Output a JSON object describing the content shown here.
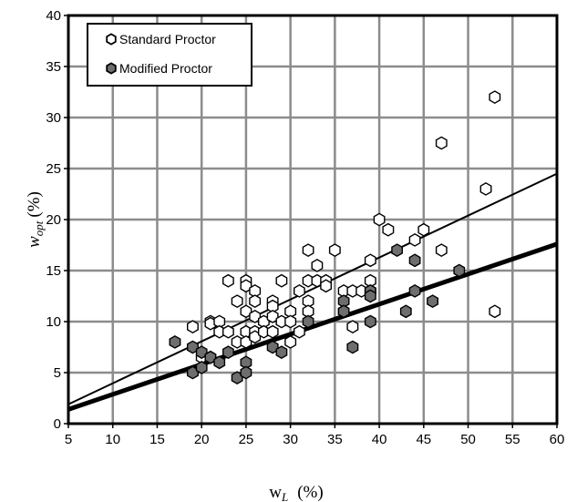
{
  "chart_data": {
    "type": "scatter",
    "xlabel": {
      "main": "w",
      "sub": "L",
      "units": "(%)"
    },
    "ylabel": {
      "main": "w",
      "sub": "opt",
      "units": "(%)"
    },
    "xlim": [
      5,
      60
    ],
    "ylim": [
      0,
      40
    ],
    "x_ticks": [
      "5",
      "10",
      "15",
      "20",
      "25",
      "30",
      "35",
      "40",
      "45",
      "50",
      "55",
      "60"
    ],
    "y_ticks": [
      "0",
      "5",
      "10",
      "15",
      "20",
      "25",
      "30",
      "35",
      "40"
    ],
    "grid": true,
    "legend_placement": "top-left",
    "series": [
      {
        "name": "Standard Proctor",
        "marker_fill": "#ffffff",
        "marker_stroke": "#000000",
        "points": [
          [
            19,
            9.5
          ],
          [
            20,
            6.5
          ],
          [
            21,
            10
          ],
          [
            21,
            9.8
          ],
          [
            21,
            6.5
          ],
          [
            22,
            10
          ],
          [
            22,
            9
          ],
          [
            23,
            14
          ],
          [
            23,
            9
          ],
          [
            24,
            12
          ],
          [
            24,
            8
          ],
          [
            25,
            14
          ],
          [
            25,
            13.5
          ],
          [
            25,
            11
          ],
          [
            25,
            9
          ],
          [
            25,
            8
          ],
          [
            26,
            13
          ],
          [
            26,
            12
          ],
          [
            26,
            10.5
          ],
          [
            26,
            9
          ],
          [
            26,
            8.5
          ],
          [
            27,
            10
          ],
          [
            27,
            9
          ],
          [
            28,
            12
          ],
          [
            28,
            11.5
          ],
          [
            28,
            10.5
          ],
          [
            28,
            9
          ],
          [
            29,
            14
          ],
          [
            29,
            10
          ],
          [
            30,
            11
          ],
          [
            30,
            10
          ],
          [
            30,
            8
          ],
          [
            31,
            13
          ],
          [
            31,
            9
          ],
          [
            32,
            17
          ],
          [
            32,
            14
          ],
          [
            32,
            12
          ],
          [
            32,
            11
          ],
          [
            33,
            15.5
          ],
          [
            33,
            14
          ],
          [
            34,
            14
          ],
          [
            34,
            13.5
          ],
          [
            35,
            17
          ],
          [
            36,
            13
          ],
          [
            36,
            11
          ],
          [
            37,
            13
          ],
          [
            37,
            9.5
          ],
          [
            38,
            13
          ],
          [
            39,
            16
          ],
          [
            39,
            14
          ],
          [
            39,
            13
          ],
          [
            40,
            20
          ],
          [
            41,
            19
          ],
          [
            44,
            18
          ],
          [
            45,
            19
          ],
          [
            47,
            27.5
          ],
          [
            47,
            17
          ],
          [
            52,
            23
          ],
          [
            53,
            32
          ],
          [
            53,
            11
          ]
        ]
      },
      {
        "name": "Modified Proctor",
        "marker_fill": "#6e6e6e",
        "marker_stroke": "#000000",
        "points": [
          [
            17,
            8
          ],
          [
            19,
            7.5
          ],
          [
            19,
            5
          ],
          [
            20,
            7
          ],
          [
            20,
            5.5
          ],
          [
            21,
            6.5
          ],
          [
            22,
            6
          ],
          [
            23,
            7
          ],
          [
            24,
            4.5
          ],
          [
            25,
            6
          ],
          [
            25,
            5
          ],
          [
            28,
            7.5
          ],
          [
            29,
            7
          ],
          [
            32,
            10
          ],
          [
            36,
            12
          ],
          [
            36,
            11
          ],
          [
            37,
            7.5
          ],
          [
            39,
            13
          ],
          [
            39,
            12.5
          ],
          [
            39,
            10
          ],
          [
            42,
            17
          ],
          [
            43,
            11
          ],
          [
            44,
            16
          ],
          [
            44,
            13
          ],
          [
            46,
            12
          ],
          [
            49,
            15
          ]
        ]
      }
    ],
    "fit_lines": [
      {
        "series": "Standard Proctor",
        "from": [
          5,
          1.9
        ],
        "to": [
          60,
          24.5
        ],
        "weight": "thin"
      },
      {
        "series": "Modified Proctor",
        "from": [
          5,
          1.4
        ],
        "to": [
          60,
          17.6
        ],
        "weight": "thick"
      }
    ]
  }
}
